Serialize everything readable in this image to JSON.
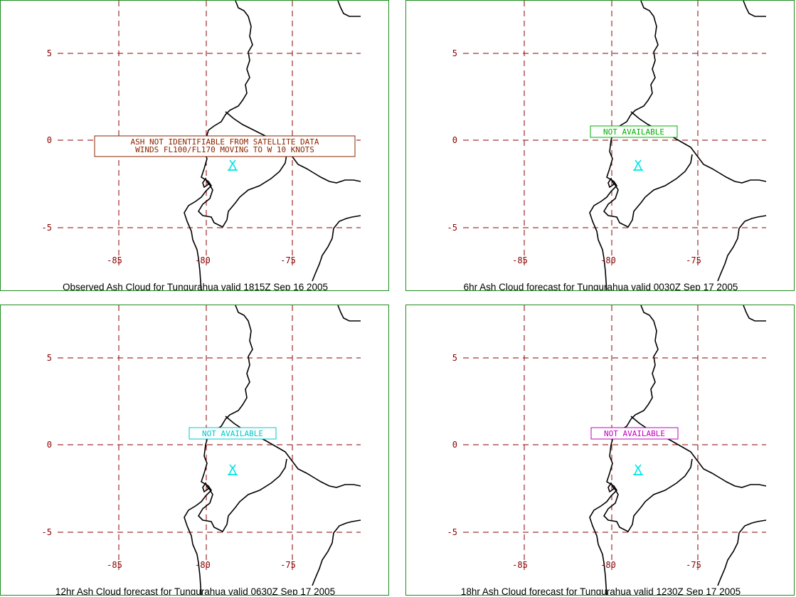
{
  "map_labels": {
    "lat": [
      "5",
      "0",
      "-5"
    ],
    "lon": [
      "-85",
      "-80",
      "-75"
    ]
  },
  "colors": {
    "grid": "#8b0000",
    "coast": "#000000",
    "volcano": "#00e5e5",
    "frame": "#1e8c1e"
  },
  "panels": [
    {
      "caption": "Observed Ash Cloud for Tungurahua valid 1815Z Sep 16 2005",
      "notice_lines": [
        "ASH NOT IDENTIFIABLE FROM SATELLITE DATA",
        "WINDS FL100/FL170 MOVING TO W 10 KNOTS"
      ],
      "notice_color": "#8b2500"
    },
    {
      "caption": "6hr Ash Cloud forecast for Tungurahua valid 0030Z Sep 17 2005",
      "notice_lines": [
        "NOT AVAILABLE"
      ],
      "notice_color": "#00b000"
    },
    {
      "caption": "12hr Ash Cloud forecast for Tungurahua valid 0630Z Sep 17 2005",
      "notice_lines": [
        "NOT AVAILABLE"
      ],
      "notice_color": "#00c8c8"
    },
    {
      "caption": "18hr Ash Cloud forecast for Tungurahua valid 1230Z Sep 17 2005",
      "notice_lines": [
        "NOT AVAILABLE"
      ],
      "notice_color": "#c000c0"
    }
  ]
}
